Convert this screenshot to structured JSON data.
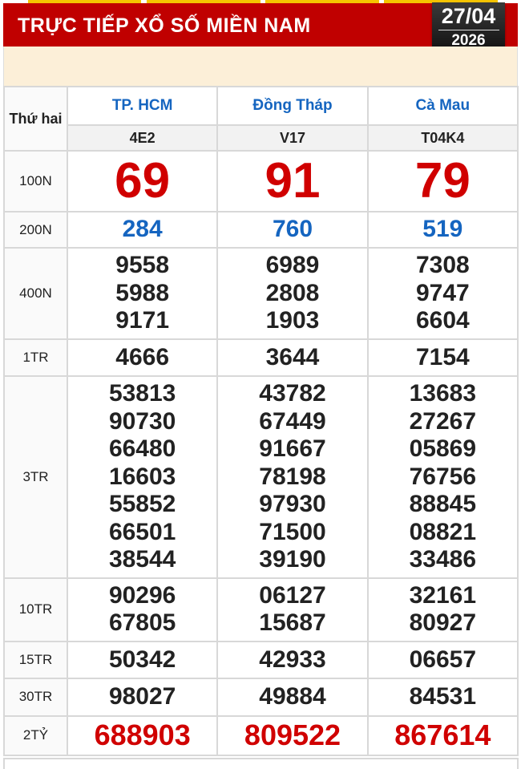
{
  "header": {
    "title": "TRỰC TIẾP XỔ SỐ MIỀN NAM",
    "date_day": "27/04",
    "date_year": "2026"
  },
  "table": {
    "day_label": "Thứ hai",
    "provinces": [
      {
        "name": "TP. HCM",
        "code": "4E2"
      },
      {
        "name": "Đồng Tháp",
        "code": "V17"
      },
      {
        "name": "Cà Mau",
        "code": "T04K4"
      }
    ],
    "prizes": [
      {
        "label": "100N",
        "style": "n100",
        "values": [
          [
            "69"
          ],
          [
            "91"
          ],
          [
            "79"
          ]
        ]
      },
      {
        "label": "200N",
        "style": "n200",
        "values": [
          [
            "284"
          ],
          [
            "760"
          ],
          [
            "519"
          ]
        ]
      },
      {
        "label": "400N",
        "style": "",
        "values": [
          [
            "9558",
            "5988",
            "9171"
          ],
          [
            "6989",
            "2808",
            "1903"
          ],
          [
            "7308",
            "9747",
            "6604"
          ]
        ]
      },
      {
        "label": "1TR",
        "style": "",
        "values": [
          [
            "4666"
          ],
          [
            "3644"
          ],
          [
            "7154"
          ]
        ]
      },
      {
        "label": "3TR",
        "style": "",
        "values": [
          [
            "53813",
            "90730",
            "66480",
            "16603",
            "55852",
            "66501",
            "38544"
          ],
          [
            "43782",
            "67449",
            "91667",
            "78198",
            "97930",
            "71500",
            "39190"
          ],
          [
            "13683",
            "27267",
            "05869",
            "76756",
            "88845",
            "08821",
            "33486"
          ]
        ]
      },
      {
        "label": "10TR",
        "style": "",
        "values": [
          [
            "90296",
            "67805"
          ],
          [
            "06127",
            "15687"
          ],
          [
            "32161",
            "80927"
          ]
        ]
      },
      {
        "label": "15TR",
        "style": "",
        "values": [
          [
            "50342"
          ],
          [
            "42933"
          ],
          [
            "06657"
          ]
        ]
      },
      {
        "label": "30TR",
        "style": "",
        "values": [
          [
            "98027"
          ],
          [
            "49884"
          ],
          [
            "84531"
          ]
        ]
      },
      {
        "label": "2TỶ",
        "style": "n2ty",
        "values": [
          [
            "688903"
          ],
          [
            "809522"
          ],
          [
            "867614"
          ]
        ]
      }
    ]
  },
  "colors": {
    "header_red": "#c00000",
    "special_red": "#d00000",
    "province_blue": "#1565c0",
    "banner": "#fcefd8"
  }
}
